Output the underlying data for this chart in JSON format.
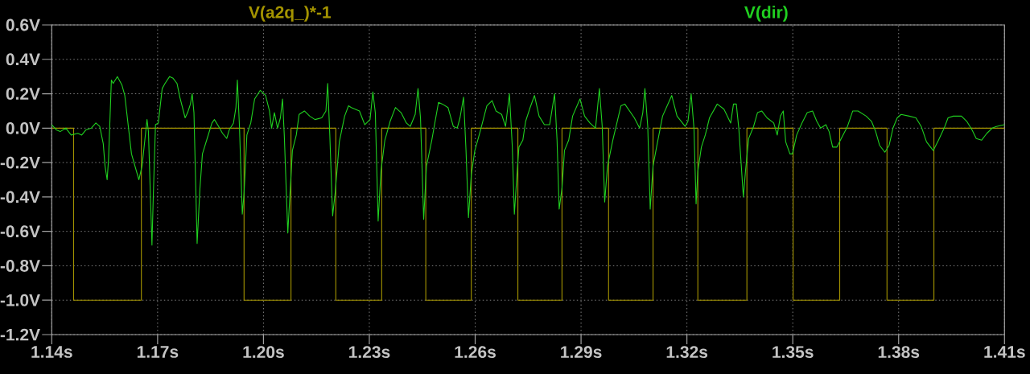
{
  "chart_data": {
    "type": "line",
    "xlim": [
      1.14,
      1.41
    ],
    "ylim": [
      -1.2,
      0.6
    ],
    "xticks": [
      {
        "value": 1.14,
        "label": "1.14s"
      },
      {
        "value": 1.17,
        "label": "1.17s"
      },
      {
        "value": 1.2,
        "label": "1.20s"
      },
      {
        "value": 1.23,
        "label": "1.23s"
      },
      {
        "value": 1.26,
        "label": "1.26s"
      },
      {
        "value": 1.29,
        "label": "1.29s"
      },
      {
        "value": 1.32,
        "label": "1.32s"
      },
      {
        "value": 1.35,
        "label": "1.35s"
      },
      {
        "value": 1.38,
        "label": "1.38s"
      },
      {
        "value": 1.41,
        "label": "1.41s"
      }
    ],
    "yticks": [
      {
        "value": -1.2,
        "label": "-1.2V"
      },
      {
        "value": -1.0,
        "label": "-1.0V"
      },
      {
        "value": -0.8,
        "label": "-0.8V"
      },
      {
        "value": -0.6,
        "label": "-0.6V"
      },
      {
        "value": -0.4,
        "label": "-0.4V"
      },
      {
        "value": -0.2,
        "label": "-0.2V"
      },
      {
        "value": 0,
        "label": "0.0V"
      },
      {
        "value": 0.2,
        "label": "0.2V"
      },
      {
        "value": 0.4,
        "label": "0.4V"
      },
      {
        "value": 0.6,
        "label": "0.6V"
      }
    ],
    "grid": true,
    "legend": "top",
    "series": [
      {
        "name": "V(a2q_)*-1",
        "type": "step",
        "color": "#a49400",
        "x": [
          1.14,
          1.1462,
          1.1654,
          1.1945,
          1.2078,
          1.2205,
          1.2335,
          1.246,
          1.2589,
          1.2721,
          1.2846,
          1.2978,
          1.3104,
          1.3231,
          1.337,
          1.3501,
          1.3633,
          1.3767,
          1.39,
          1.41
        ],
        "values": [
          0,
          -1,
          0,
          -1,
          0,
          -1,
          0,
          -1,
          0,
          -1,
          0,
          -1,
          0,
          -1,
          0,
          -1,
          0,
          -1,
          0,
          0
        ]
      },
      {
        "name": "V(dir)",
        "color": "#20d020",
        "x": [
          1.14,
          1.1413,
          1.1424,
          1.144,
          1.1455,
          1.1474,
          1.1485,
          1.1497,
          1.1512,
          1.1525,
          1.1536,
          1.1546,
          1.1551,
          1.1557,
          1.1561,
          1.1569,
          1.1574,
          1.1586,
          1.1599,
          1.1607,
          1.1626,
          1.1647,
          1.1656,
          1.167,
          1.1674,
          1.1684,
          1.1688,
          1.1694,
          1.1702,
          1.1713,
          1.1721,
          1.1734,
          1.1744,
          1.1755,
          1.1763,
          1.1778,
          1.1785,
          1.1793,
          1.1798,
          1.1803,
          1.1812,
          1.182,
          1.1827,
          1.1842,
          1.1854,
          1.1861,
          1.1873,
          1.1884,
          1.1896,
          1.1903,
          1.1915,
          1.1922,
          1.1926,
          1.1932,
          1.194,
          1.1945,
          1.1953,
          1.1964,
          1.1975,
          1.1991,
          1.2006,
          1.2017,
          1.2023,
          1.2031,
          1.204,
          1.2048,
          1.2054,
          1.2059,
          1.2069,
          1.2076,
          1.2082,
          1.2093,
          1.2101,
          1.2116,
          1.2131,
          1.2146,
          1.2165,
          1.2177,
          1.2182,
          1.2188,
          1.2196,
          1.2203,
          1.2215,
          1.223,
          1.2241,
          1.2249,
          1.2272,
          1.2287,
          1.2302,
          1.231,
          1.2317,
          1.2325,
          1.2333,
          1.2344,
          1.2359,
          1.2374,
          1.239,
          1.2405,
          1.2416,
          1.243,
          1.2438,
          1.2445,
          1.2454,
          1.2462,
          1.2477,
          1.2496,
          1.2507,
          1.2523,
          1.2538,
          1.2549,
          1.2557,
          1.2567,
          1.2574,
          1.2581,
          1.2589,
          1.2599,
          1.2614,
          1.2633,
          1.2648,
          1.2659,
          1.2675,
          1.2686,
          1.2697,
          1.2705,
          1.2711,
          1.272,
          1.2724,
          1.2735,
          1.2743,
          1.2754,
          1.2768,
          1.2781,
          1.2796,
          1.2811,
          1.2825,
          1.2832,
          1.2838,
          1.2846,
          1.2853,
          1.2865,
          1.2876,
          1.2897,
          1.291,
          1.2925,
          1.2941,
          1.2952,
          1.296,
          1.2967,
          1.2975,
          1.299,
          1.3013,
          1.3024,
          1.3051,
          1.3066,
          1.3075,
          1.3081,
          1.3089,
          1.3096,
          1.3104,
          1.3115,
          1.3131,
          1.3157,
          1.3172,
          1.3195,
          1.3203,
          1.3212,
          1.322,
          1.3226,
          1.3231,
          1.3241,
          1.3252,
          1.3264,
          1.3275,
          1.3286,
          1.3305,
          1.3324,
          1.3332,
          1.334,
          1.3347,
          1.336,
          1.3366,
          1.3375,
          1.3389,
          1.34,
          1.3412,
          1.3427,
          1.3446,
          1.3456,
          1.3465,
          1.3473,
          1.348,
          1.3492,
          1.3499,
          1.3511,
          1.3526,
          1.3541,
          1.3556,
          1.3568,
          1.3579,
          1.3594,
          1.3603,
          1.3613,
          1.3625,
          1.364,
          1.3655,
          1.367,
          1.3685,
          1.3708,
          1.3723,
          1.3735,
          1.3746,
          1.3761,
          1.3773,
          1.3784,
          1.3796,
          1.3807,
          1.383,
          1.3849,
          1.3864,
          1.3879,
          1.3898,
          1.3913,
          1.3929,
          1.394,
          1.3955,
          1.3978,
          1.3993,
          1.4008,
          1.402,
          1.4035,
          1.405,
          1.4065,
          1.4077,
          1.41
        ],
        "values": [
          0.02,
          -0.01,
          -0.02,
          0,
          -0.04,
          -0.03,
          -0.04,
          -0.01,
          0,
          0.03,
          0.01,
          -0.09,
          -0.22,
          -0.3,
          -0.18,
          0.28,
          0.26,
          0.3,
          0.25,
          0.19,
          -0.15,
          -0.3,
          -0.22,
          0.05,
          -0.02,
          -0.68,
          -0.38,
          0.02,
          0.03,
          0.23,
          0.26,
          0.3,
          0.29,
          0.26,
          0.18,
          0.06,
          0.09,
          0.14,
          0.2,
          0.09,
          -0.67,
          -0.35,
          -0.15,
          -0.05,
          0.03,
          0.05,
          0.01,
          -0.03,
          -0.06,
          -0.01,
          0.03,
          0.12,
          0.28,
          0.01,
          -0.5,
          -0.38,
          -0.04,
          0.03,
          0.17,
          0.22,
          0.19,
          0.1,
          0,
          0.09,
          0,
          0.06,
          0.17,
          -0.04,
          -0.61,
          -0.35,
          -0.13,
          -0.04,
          0.08,
          0.1,
          0.07,
          0.05,
          0.06,
          0.1,
          0.26,
          -0.04,
          -0.51,
          -0.38,
          -0.08,
          0.07,
          0.13,
          0.12,
          0.1,
          0.02,
          0.05,
          0.21,
          0.09,
          -0.54,
          -0.25,
          -0.07,
          0.04,
          0.12,
          0.09,
          0.03,
          0.01,
          0.08,
          0.23,
          0.06,
          -0.53,
          -0.22,
          -0.07,
          0.15,
          0.14,
          0.12,
          0.01,
          0,
          0.06,
          0.18,
          -0.13,
          -0.52,
          -0.27,
          -0.13,
          -0.02,
          0.13,
          0.16,
          0.1,
          0.08,
          0.01,
          0.2,
          -0.1,
          -0.5,
          -0.22,
          -0.11,
          -0.07,
          0.04,
          0.11,
          0.19,
          0.07,
          0.02,
          0.02,
          0.2,
          -0.07,
          -0.47,
          -0.35,
          -0.13,
          -0.07,
          0.07,
          0.17,
          0.07,
          0.03,
          0,
          0.23,
          0.01,
          -0.43,
          -0.22,
          -0.07,
          0.13,
          0.14,
          0.06,
          0,
          0.09,
          0.23,
          0.01,
          -0.47,
          -0.22,
          -0.1,
          0.07,
          0.19,
          0.07,
          0.01,
          0.04,
          0.2,
          0,
          -0.44,
          -0.25,
          -0.11,
          -0.04,
          0.06,
          0.1,
          0.14,
          0.11,
          0.03,
          0.14,
          0.14,
          0,
          -0.4,
          -0.25,
          -0.06,
          0.01,
          0.09,
          0.1,
          0.06,
          0.03,
          -0.04,
          0.07,
          0.1,
          -0.08,
          -0.15,
          -0.15,
          -0.04,
          0.03,
          0.09,
          0.1,
          0.04,
          0,
          0.02,
          -0.02,
          -0.11,
          -0.11,
          -0.05,
          0.01,
          0.1,
          0.1,
          0.07,
          0.04,
          -0.02,
          -0.1,
          -0.14,
          -0.1,
          0,
          0.06,
          0.08,
          0.07,
          0.06,
          0.01,
          -0.08,
          -0.13,
          -0.07,
          0,
          0.06,
          0.07,
          0.07,
          0.04,
          -0.01,
          -0.06,
          -0.07,
          -0.03,
          0,
          0.01,
          0.02
        ]
      }
    ]
  }
}
